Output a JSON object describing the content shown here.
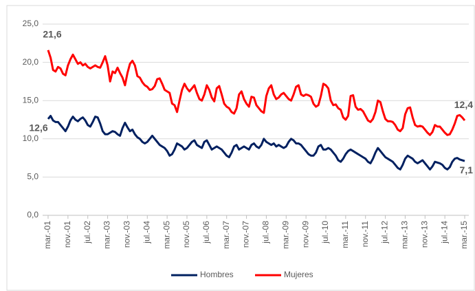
{
  "chart_data": {
    "type": "line",
    "categories": [
      "mar.-01",
      null,
      null,
      null,
      null,
      null,
      null,
      null,
      "nov.-01",
      null,
      null,
      null,
      null,
      null,
      null,
      null,
      "jul.-02",
      null,
      null,
      null,
      null,
      null,
      null,
      null,
      "mar.-03",
      null,
      null,
      null,
      null,
      null,
      null,
      null,
      "nov.-03",
      null,
      null,
      null,
      null,
      null,
      null,
      null,
      "jul.-04",
      null,
      null,
      null,
      null,
      null,
      null,
      null,
      "mar.-05",
      null,
      null,
      null,
      null,
      null,
      null,
      null,
      "nov.-05",
      null,
      null,
      null,
      null,
      null,
      null,
      null,
      "jul.-06",
      null,
      null,
      null,
      null,
      null,
      null,
      null,
      "mar.-07",
      null,
      null,
      null,
      null,
      null,
      null,
      null,
      "nov.-07",
      null,
      null,
      null,
      null,
      null,
      null,
      null,
      "jul.-08",
      null,
      null,
      null,
      null,
      null,
      null,
      null,
      "mar.-09",
      null,
      null,
      null,
      null,
      null,
      null,
      null,
      "nov.-09",
      null,
      null,
      null,
      null,
      null,
      null,
      null,
      "jul.-10",
      null,
      null,
      null,
      null,
      null,
      null,
      null,
      "mar.-11",
      null,
      null,
      null,
      null,
      null,
      null,
      null,
      "nov.-11",
      null,
      null,
      null,
      null,
      null,
      null,
      null,
      "jul.-12",
      null,
      null,
      null,
      null,
      null,
      null,
      null,
      "mar.-13",
      null,
      null,
      null,
      null,
      null,
      null,
      null,
      "nov.-13",
      null,
      null,
      null,
      null,
      null,
      null,
      null,
      "jul.-14",
      null,
      null,
      null,
      null,
      null,
      null,
      null,
      "mar.-15"
    ],
    "series": [
      {
        "name": "Hombres",
        "color": "#002060",
        "values": [
          12.6,
          13.0,
          12.4,
          12.2,
          12.2,
          11.8,
          11.4,
          11.0,
          11.6,
          12.4,
          12.9,
          12.5,
          12.3,
          12.6,
          12.8,
          12.4,
          11.8,
          11.6,
          12.2,
          12.9,
          12.8,
          12.0,
          11.0,
          10.6,
          10.6,
          10.8,
          11.0,
          10.9,
          10.6,
          10.4,
          11.4,
          12.1,
          11.5,
          11.0,
          11.2,
          10.6,
          10.2,
          10.0,
          9.6,
          9.4,
          9.6,
          10.0,
          10.4,
          10.0,
          9.6,
          9.2,
          9.0,
          8.8,
          8.4,
          7.8,
          8.0,
          8.6,
          9.4,
          9.2,
          9.0,
          8.6,
          8.8,
          9.2,
          9.6,
          9.8,
          9.2,
          9.0,
          8.8,
          9.6,
          9.8,
          9.2,
          8.6,
          8.8,
          9.0,
          8.8,
          8.6,
          8.2,
          7.8,
          7.6,
          8.2,
          9.0,
          9.2,
          8.6,
          8.8,
          9.0,
          8.8,
          8.6,
          9.2,
          9.4,
          9.0,
          8.8,
          9.2,
          10.0,
          9.6,
          9.4,
          9.2,
          9.4,
          9.0,
          9.2,
          9.0,
          8.8,
          9.0,
          9.6,
          10.0,
          9.8,
          9.4,
          9.4,
          9.2,
          8.8,
          8.4,
          8.0,
          7.8,
          7.8,
          8.2,
          9.0,
          9.2,
          8.6,
          8.6,
          8.8,
          8.6,
          8.2,
          7.8,
          7.2,
          7.0,
          7.4,
          8.0,
          8.4,
          8.6,
          8.4,
          8.2,
          8.0,
          7.8,
          7.6,
          7.4,
          7.0,
          6.8,
          7.4,
          8.2,
          8.8,
          8.4,
          8.0,
          7.6,
          7.4,
          7.2,
          7.0,
          6.6,
          6.2,
          6.0,
          6.6,
          7.4,
          7.8,
          7.6,
          7.4,
          7.0,
          6.8,
          7.0,
          7.2,
          6.8,
          6.4,
          6.0,
          6.4,
          7.0,
          6.9,
          6.8,
          6.6,
          6.2,
          6.0,
          6.3,
          7.0,
          7.4,
          7.5,
          7.3,
          7.2,
          7.1
        ],
        "value_labels": [
          "12,6",
          null,
          null,
          null,
          null,
          null,
          null,
          null,
          null,
          null,
          null,
          null,
          null,
          null,
          null,
          null,
          null,
          null,
          null,
          null,
          null,
          null,
          null,
          null,
          null,
          null,
          null,
          null,
          null,
          null,
          null,
          null,
          null,
          null,
          null,
          null,
          null,
          null,
          null,
          null,
          null,
          null,
          null,
          null,
          null,
          null,
          null,
          null,
          null,
          null,
          null,
          null,
          null,
          null,
          null,
          null,
          null,
          null,
          null,
          null,
          null,
          null,
          null,
          null,
          null,
          null,
          null,
          null,
          null,
          null,
          null,
          null,
          null,
          null,
          null,
          null,
          null,
          null,
          null,
          null,
          null,
          null,
          null,
          null,
          null,
          null,
          null,
          null,
          null,
          null,
          null,
          null,
          null,
          null,
          null,
          null,
          null,
          null,
          null,
          null,
          null,
          null,
          null,
          null,
          null,
          null,
          null,
          null,
          null,
          null,
          null,
          null,
          null,
          null,
          null,
          null,
          null,
          null,
          null,
          null,
          null,
          null,
          null,
          null,
          null,
          null,
          null,
          null,
          null,
          null,
          null,
          null,
          null,
          null,
          null,
          null,
          null,
          null,
          null,
          null,
          null,
          null,
          null,
          null,
          null,
          null,
          null,
          null,
          null,
          null,
          null,
          null,
          null,
          null,
          null,
          null,
          null,
          null,
          null,
          null,
          null,
          null,
          null,
          null,
          null,
          null,
          null,
          null,
          "7,1"
        ]
      },
      {
        "name": "Mujeres",
        "color": "#ff0000",
        "values": [
          21.6,
          20.6,
          19.0,
          18.8,
          19.4,
          19.2,
          18.5,
          18.3,
          19.6,
          20.4,
          21.0,
          20.4,
          19.8,
          20.0,
          19.6,
          19.8,
          19.4,
          19.2,
          19.4,
          19.6,
          19.4,
          19.3,
          20.0,
          20.8,
          19.6,
          17.5,
          18.8,
          18.6,
          19.3,
          18.6,
          18.0,
          17.0,
          18.6,
          19.8,
          20.2,
          19.6,
          18.2,
          18.0,
          17.4,
          17.0,
          16.8,
          16.4,
          16.5,
          16.9,
          17.8,
          17.9,
          17.2,
          16.4,
          16.2,
          16.0,
          14.6,
          14.4,
          13.5,
          15.0,
          16.4,
          17.2,
          16.6,
          16.2,
          16.6,
          17.0,
          16.0,
          15.2,
          15.0,
          15.8,
          17.0,
          16.4,
          15.4,
          14.9,
          16.6,
          16.9,
          15.8,
          14.6,
          14.2,
          14.0,
          13.5,
          13.3,
          14.0,
          15.8,
          16.2,
          15.2,
          14.6,
          14.2,
          15.5,
          15.4,
          14.4,
          14.0,
          13.6,
          13.4,
          15.6,
          16.6,
          17.0,
          15.8,
          15.2,
          15.4,
          15.8,
          16.0,
          15.6,
          15.2,
          15.0,
          15.8,
          16.8,
          17.0,
          15.8,
          15.6,
          15.8,
          15.7,
          15.5,
          14.6,
          14.2,
          14.4,
          15.6,
          17.2,
          17.0,
          16.6,
          15.0,
          14.4,
          14.5,
          14.0,
          13.8,
          12.8,
          12.5,
          13.0,
          15.6,
          15.7,
          14.2,
          13.8,
          13.9,
          13.6,
          13.0,
          12.4,
          12.2,
          12.6,
          13.5,
          15.0,
          14.8,
          13.6,
          12.6,
          12.3,
          12.3,
          12.2,
          11.8,
          11.2,
          11.0,
          11.4,
          13.2,
          14.0,
          14.1,
          12.8,
          11.8,
          11.6,
          11.7,
          11.6,
          11.2,
          10.8,
          10.5,
          10.9,
          11.8,
          11.6,
          11.6,
          11.2,
          10.8,
          10.5,
          10.6,
          11.2,
          12.0,
          13.0,
          13.1,
          12.8,
          12.4
        ],
        "value_labels": [
          "21,6",
          null,
          null,
          null,
          null,
          null,
          null,
          null,
          null,
          null,
          null,
          null,
          null,
          null,
          null,
          null,
          null,
          null,
          null,
          null,
          null,
          null,
          null,
          null,
          null,
          null,
          null,
          null,
          null,
          null,
          null,
          null,
          null,
          null,
          null,
          null,
          null,
          null,
          null,
          null,
          null,
          null,
          null,
          null,
          null,
          null,
          null,
          null,
          null,
          null,
          null,
          null,
          null,
          null,
          null,
          null,
          null,
          null,
          null,
          null,
          null,
          null,
          null,
          null,
          null,
          null,
          null,
          null,
          null,
          null,
          null,
          null,
          null,
          null,
          null,
          null,
          null,
          null,
          null,
          null,
          null,
          null,
          null,
          null,
          null,
          null,
          null,
          null,
          null,
          null,
          null,
          null,
          null,
          null,
          null,
          null,
          null,
          null,
          null,
          null,
          null,
          null,
          null,
          null,
          null,
          null,
          null,
          null,
          null,
          null,
          null,
          null,
          null,
          null,
          null,
          null,
          null,
          null,
          null,
          null,
          null,
          null,
          null,
          null,
          null,
          null,
          null,
          null,
          null,
          null,
          null,
          null,
          null,
          null,
          null,
          null,
          null,
          null,
          null,
          null,
          null,
          null,
          null,
          null,
          null,
          null,
          null,
          null,
          null,
          null,
          null,
          null,
          null,
          null,
          null,
          null,
          null,
          null,
          null,
          null,
          null,
          null,
          null,
          null,
          null,
          null,
          null,
          null,
          "12,4"
        ]
      }
    ],
    "ylim": [
      0,
      25
    ],
    "yticks": [
      {
        "value": 0,
        "label": "0,0"
      },
      {
        "value": 5,
        "label": "5,0"
      },
      {
        "value": 10,
        "label": "10,0"
      },
      {
        "value": 15,
        "label": "15,0"
      },
      {
        "value": 20,
        "label": "20,0"
      },
      {
        "value": 25,
        "label": "25,0"
      }
    ],
    "grid": true,
    "legend": "bottom"
  }
}
